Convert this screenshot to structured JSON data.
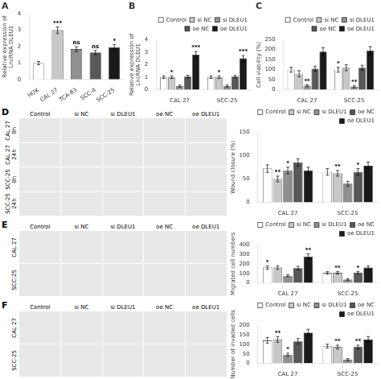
{
  "chart_data": [
    {
      "type": "bar",
      "title": "A",
      "categories": [
        "HOK",
        "CAL 27",
        "TCA-83",
        "SCC-4",
        "SCC-25"
      ],
      "values": [
        1.0,
        3.0,
        1.85,
        1.65,
        1.95
      ],
      "errors": [
        0.1,
        0.2,
        0.15,
        0.12,
        0.18
      ],
      "colors": [
        "white",
        "#c8c8c8",
        "#909090",
        "#585858",
        "#1a1a1a"
      ],
      "annotations": [
        null,
        "***",
        "ns",
        "ns",
        "*"
      ],
      "ylabel": "Relative expression of\nLncRNA DLEU1",
      "ylim": [
        0,
        4
      ],
      "yticks": [
        0,
        1,
        2,
        3,
        4
      ],
      "grid": false
    },
    {
      "type": "bar",
      "title": "B",
      "categories": [
        "CAL 27",
        "SCC-25"
      ],
      "series": [
        {
          "name": "Control",
          "color": "white",
          "values": [
            1.0,
            1.0
          ],
          "errors": [
            0.1,
            0.1
          ],
          "annotations": [
            null,
            null
          ]
        },
        {
          "name": "si NC",
          "color": "#c8c8c8",
          "values": [
            1.0,
            1.0
          ],
          "errors": [
            0.1,
            0.1
          ],
          "annotations": [
            "*",
            "*"
          ]
        },
        {
          "name": "si DLEU1",
          "color": "#909090",
          "values": [
            0.3,
            0.3
          ],
          "errors": [
            0.08,
            0.08
          ],
          "annotations": [
            null,
            null
          ]
        },
        {
          "name": "oe NC",
          "color": "#585858",
          "values": [
            1.05,
            1.05
          ],
          "errors": [
            0.1,
            0.1
          ],
          "annotations": [
            null,
            null
          ]
        },
        {
          "name": "oe DLEU1",
          "color": "#1a1a1a",
          "values": [
            2.8,
            2.5
          ],
          "errors": [
            0.25,
            0.22
          ],
          "annotations": [
            "***",
            "***"
          ]
        }
      ],
      "ylabel": "Relative expression of\nLncRNA DLEU1",
      "ylim": [
        0,
        4
      ],
      "yticks": [
        0,
        1,
        2,
        3,
        4
      ],
      "grid": false,
      "legend": "upper right"
    },
    {
      "type": "bar",
      "title": "C",
      "categories": [
        "CAL 27",
        "SCC-25"
      ],
      "series": [
        {
          "name": "Control",
          "color": "white",
          "values": [
            100,
            100
          ],
          "errors": [
            12,
            12
          ],
          "annotations": [
            null,
            "*"
          ]
        },
        {
          "name": "si NC",
          "color": "#c8c8c8",
          "values": [
            80,
            110
          ],
          "errors": [
            15,
            15
          ],
          "annotations": [
            null,
            null
          ]
        },
        {
          "name": "si DLEU1",
          "color": "#909090",
          "values": [
            20,
            15
          ],
          "errors": [
            5,
            5
          ],
          "annotations": [
            "**",
            "**"
          ]
        },
        {
          "name": "oe NC",
          "color": "#585858",
          "values": [
            105,
            110
          ],
          "errors": [
            12,
            12
          ],
          "annotations": [
            null,
            null
          ]
        },
        {
          "name": "oe DLEU1",
          "color": "#1a1a1a",
          "values": [
            190,
            195
          ],
          "errors": [
            20,
            20
          ],
          "annotations": [
            null,
            null
          ]
        }
      ],
      "ylabel": "Cell viability (%)",
      "ylim": [
        0,
        250
      ],
      "yticks": [
        0,
        50,
        100,
        150,
        200,
        250
      ],
      "grid": false,
      "legend": "upper right"
    },
    {
      "type": "image",
      "title": "D",
      "categories": [
        "Control",
        "si NC",
        "si DLEU1",
        "oe NC",
        "oe DLEU1"
      ],
      "annotations": [
        "CAL 27\n0h",
        "CAL 27\n24h",
        "SCC-25\n0h",
        "SCC-25\n24h"
      ],
      "color": "#e8e8e8"
    },
    {
      "type": "bar",
      "categories": [
        "CAL 27",
        "SCC-25"
      ],
      "series": [
        {
          "name": "Control",
          "color": "white",
          "values": [
            72,
            65
          ],
          "errors": [
            8,
            7
          ],
          "annotations": [
            null,
            null
          ]
        },
        {
          "name": "si NC",
          "color": "#c8c8c8",
          "values": [
            50,
            62
          ],
          "errors": [
            6,
            6
          ],
          "annotations": [
            "**",
            "**"
          ]
        },
        {
          "name": "si DLEU1",
          "color": "#909090",
          "values": [
            68,
            40
          ],
          "errors": [
            7,
            5
          ],
          "annotations": [
            "*",
            null
          ]
        },
        {
          "name": "oe NC",
          "color": "#585858",
          "values": [
            85,
            65
          ],
          "errors": [
            8,
            7
          ],
          "annotations": [
            null,
            "*"
          ]
        },
        {
          "name": "oe DLEU1",
          "color": "#1a1a1a",
          "values": [
            68,
            78
          ],
          "errors": [
            7,
            8
          ],
          "annotations": [
            null,
            null
          ]
        }
      ],
      "ylabel": "Wound closure (%)",
      "ylim": [
        0,
        150
      ],
      "yticks": [
        0,
        50,
        100,
        150
      ],
      "grid": false,
      "legend": "upper right"
    },
    {
      "type": "image",
      "title": "E",
      "categories": [
        "Control",
        "si NC",
        "si DLEU1",
        "oe NC",
        "oe DLEU1"
      ],
      "annotations": [
        "CAL 27",
        "SCC-25"
      ],
      "color": "#e8e8e8"
    },
    {
      "type": "bar",
      "categories": [
        "CAL 27",
        "SCC-25"
      ],
      "series": [
        {
          "name": "Control",
          "color": "white",
          "values": [
            160,
            105
          ],
          "errors": [
            18,
            12
          ],
          "annotations": [
            "*",
            null
          ]
        },
        {
          "name": "si NC",
          "color": "#c8c8c8",
          "values": [
            160,
            105
          ],
          "errors": [
            18,
            12
          ],
          "annotations": [
            null,
            "**"
          ]
        },
        {
          "name": "si DLEU1",
          "color": "#909090",
          "values": [
            75,
            35
          ],
          "errors": [
            10,
            8
          ],
          "annotations": [
            null,
            null
          ]
        },
        {
          "name": "oe NC",
          "color": "#585858",
          "values": [
            155,
            108
          ],
          "errors": [
            18,
            12
          ],
          "annotations": [
            null,
            "*"
          ]
        },
        {
          "name": "oe DLEU1",
          "color": "#1a1a1a",
          "values": [
            275,
            160
          ],
          "errors": [
            30,
            18
          ],
          "annotations": [
            "**",
            null
          ]
        }
      ],
      "ylabel": "Migrated cell numbers",
      "ylim": [
        0,
        400
      ],
      "yticks": [
        0,
        100,
        200,
        300,
        400
      ],
      "grid": false,
      "legend": "upper right"
    },
    {
      "type": "image",
      "title": "F",
      "categories": [
        "Control",
        "si NC",
        "si DLEU1",
        "oe NC",
        "oe DLEU1"
      ],
      "annotations": [
        "CAL 27",
        "SCC-25"
      ],
      "color": "#e8e8e8"
    },
    {
      "type": "bar",
      "categories": [
        "CAL 27",
        "SCC-25"
      ],
      "series": [
        {
          "name": "Control",
          "color": "white",
          "values": [
            120,
            90
          ],
          "errors": [
            15,
            10
          ],
          "annotations": [
            null,
            null
          ]
        },
        {
          "name": "si NC",
          "color": "#c8c8c8",
          "values": [
            125,
            85
          ],
          "errors": [
            15,
            10
          ],
          "annotations": [
            "**",
            "**"
          ]
        },
        {
          "name": "si DLEU1",
          "color": "#909090",
          "values": [
            45,
            20
          ],
          "errors": [
            8,
            5
          ],
          "annotations": [
            "*",
            null
          ]
        },
        {
          "name": "oe NC",
          "color": "#585858",
          "values": [
            115,
            85
          ],
          "errors": [
            15,
            10
          ],
          "annotations": [
            null,
            "**"
          ]
        },
        {
          "name": "oe DLEU1",
          "color": "#1a1a1a",
          "values": [
            160,
            125
          ],
          "errors": [
            18,
            15
          ],
          "annotations": [
            null,
            null
          ]
        }
      ],
      "ylabel": "Number of invaded cells",
      "ylim": [
        0,
        200
      ],
      "yticks": [
        0,
        50,
        100,
        150,
        200
      ],
      "grid": false,
      "legend": "upper right"
    }
  ]
}
